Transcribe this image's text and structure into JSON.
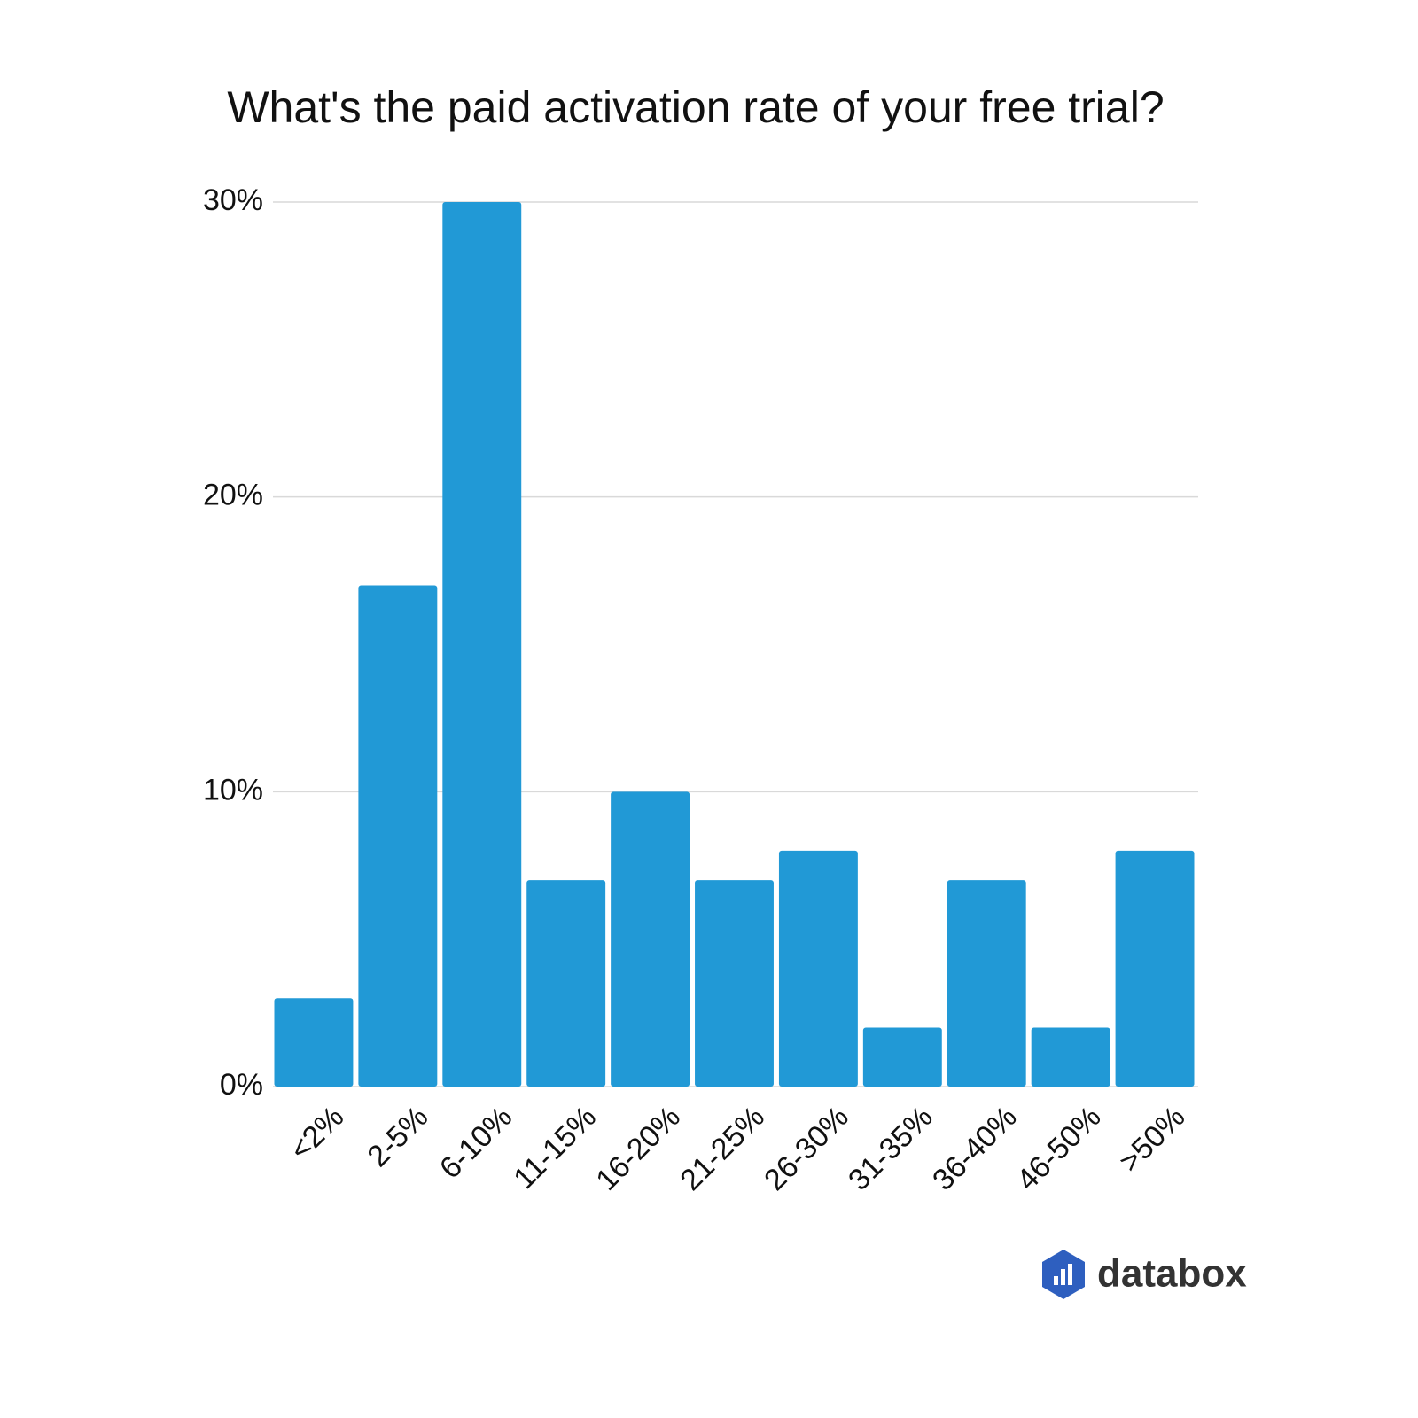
{
  "chart_data": {
    "type": "bar",
    "title": "What's the paid activation rate of your free trial?",
    "categories": [
      "<2%",
      "2-5%",
      "6-10%",
      "11-15%",
      "16-20%",
      "21-25%",
      "26-30%",
      "31-35%",
      "36-40%",
      "46-50%",
      ">50%"
    ],
    "values": [
      3,
      17,
      30,
      7,
      10,
      7,
      8,
      2,
      7,
      2,
      8
    ],
    "color": "#2199d6",
    "ylim": [
      0,
      30
    ],
    "yticks": [
      {
        "value": 0,
        "label": "0%"
      },
      {
        "value": 10,
        "label": "10%"
      },
      {
        "value": 20,
        "label": "20%"
      },
      {
        "value": 30,
        "label": "30%"
      }
    ],
    "grid": true,
    "brand": "databox"
  }
}
